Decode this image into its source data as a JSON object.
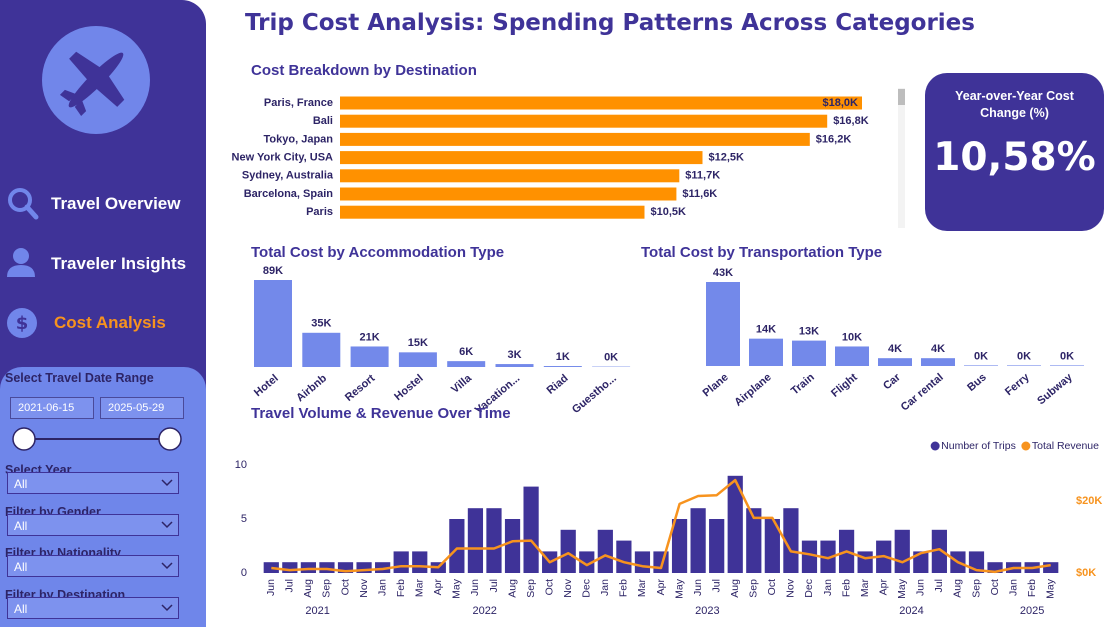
{
  "title": "Trip Cost Analysis: Spending Patterns Across Categories",
  "sidebar": {
    "nav": [
      "Travel Overview",
      "Traveler Insights",
      "Cost Analysis"
    ],
    "date_range": {
      "label": "Select Travel Date Range",
      "start": "2021-06-15",
      "end": "2025-05-29"
    },
    "dropdowns": [
      {
        "label": "Select Year",
        "value": "All"
      },
      {
        "label": "Filter by Gender",
        "value": "All"
      },
      {
        "label": "Filter by Nationality",
        "value": "All"
      },
      {
        "label": "Filter by Destination",
        "value": "All"
      }
    ]
  },
  "kpi": {
    "label": "Year-over-Year Cost Change (%)",
    "value": 10.58,
    "value_label": "10,58%"
  },
  "chart_data": [
    {
      "type": "bar",
      "orientation": "horizontal",
      "title": "Cost Breakdown by Destination",
      "color": "#ff9100",
      "categories": [
        "Paris, France",
        "Bali",
        "Tokyo, Japan",
        "New York City, USA",
        "Sydney, Australia",
        "Barcelona, Spain",
        "Paris"
      ],
      "values": [
        18000,
        16800,
        16200,
        12500,
        11700,
        11600,
        10500
      ],
      "value_labels": [
        "$18,0K",
        "$16,8K",
        "$16,2K",
        "$12,5K",
        "$11,7K",
        "$11,6K",
        "$10,5K"
      ]
    },
    {
      "type": "bar",
      "title": "Total Cost by Accommodation Type",
      "color": "#7389ea",
      "categories": [
        "Hotel",
        "Airbnb",
        "Resort",
        "Hostel",
        "Villa",
        "Vacation...",
        "Riad",
        "Guestho..."
      ],
      "values": [
        89000,
        35000,
        21000,
        15000,
        6000,
        3000,
        1000,
        400
      ],
      "value_labels": [
        "89K",
        "35K",
        "21K",
        "15K",
        "6K",
        "3K",
        "1K",
        "0K"
      ]
    },
    {
      "type": "bar",
      "title": "Total Cost by Transportation Type",
      "color": "#7389ea",
      "categories": [
        "Plane",
        "Airplane",
        "Train",
        "Flight",
        "Car",
        "Car rental",
        "Bus",
        "Ferry",
        "Subway"
      ],
      "values": [
        43000,
        14000,
        13000,
        10000,
        4000,
        4000,
        300,
        300,
        300
      ],
      "value_labels": [
        "43K",
        "14K",
        "13K",
        "10K",
        "4K",
        "4K",
        "0K",
        "0K",
        "0K"
      ]
    },
    {
      "type": "combo",
      "title": "Travel Volume & Revenue Over Time",
      "categories": [
        "Jun",
        "Jul",
        "Aug",
        "Sep",
        "Oct",
        "Nov",
        "Jan",
        "Feb",
        "Mar",
        "Apr",
        "May",
        "Jun",
        "Jul",
        "Aug",
        "Sep",
        "Oct",
        "Nov",
        "Dec",
        "Jan",
        "Feb",
        "Mar",
        "Apr",
        "May",
        "Jun",
        "Jul",
        "Aug",
        "Sep",
        "Oct",
        "Nov",
        "Dec",
        "Jan",
        "Feb",
        "Mar",
        "Apr",
        "May",
        "Jun",
        "Jul",
        "Aug",
        "Sep",
        "Oct",
        "Jan",
        "Feb",
        "May"
      ],
      "category_years": [
        "2021",
        "2021",
        "2021",
        "2021",
        "2021",
        "2021",
        "2022",
        "2022",
        "2022",
        "2022",
        "2022",
        "2022",
        "2022",
        "2022",
        "2022",
        "2022",
        "2022",
        "2022",
        "2023",
        "2023",
        "2023",
        "2023",
        "2023",
        "2023",
        "2023",
        "2023",
        "2023",
        "2023",
        "2023",
        "2023",
        "2024",
        "2024",
        "2024",
        "2024",
        "2024",
        "2024",
        "2024",
        "2024",
        "2024",
        "2024",
        "2025",
        "2025",
        "2025"
      ],
      "series": [
        {
          "name": "Number of Trips",
          "type": "bar",
          "axis": "y",
          "color": "#3f3398",
          "values": [
            1,
            1,
            1,
            1,
            1,
            1,
            1,
            2,
            2,
            1,
            5,
            6,
            6,
            5,
            8,
            2,
            4,
            2,
            4,
            3,
            2,
            2,
            5,
            6,
            5,
            9,
            6,
            5,
            6,
            3,
            3,
            4,
            2,
            3,
            4,
            2,
            4,
            2,
            2,
            1,
            1,
            1,
            1
          ]
        },
        {
          "name": "Total Revenue",
          "type": "line",
          "axis": "y2",
          "color": "#f7931e",
          "values": [
            1400,
            800,
            1100,
            1100,
            500,
            800,
            1100,
            1900,
            1900,
            1600,
            6800,
            6800,
            6800,
            8800,
            9000,
            3000,
            5500,
            2200,
            4900,
            3000,
            1900,
            1400,
            19200,
            21400,
            21600,
            25800,
            15300,
            15300,
            6000,
            5200,
            4100,
            6000,
            4100,
            4700,
            3000,
            5500,
            6600,
            3000,
            800,
            300,
            1400,
            1400,
            2200
          ]
        }
      ],
      "ylim": [
        0,
        10
      ],
      "yticks": [
        0,
        5,
        10
      ],
      "y2lim": [
        0,
        30000
      ],
      "y2ticks": [
        {
          "value": 0,
          "label": "$0K"
        },
        {
          "value": 20000,
          "label": "$20K"
        }
      ],
      "legend": "top-right",
      "grid": false
    }
  ]
}
